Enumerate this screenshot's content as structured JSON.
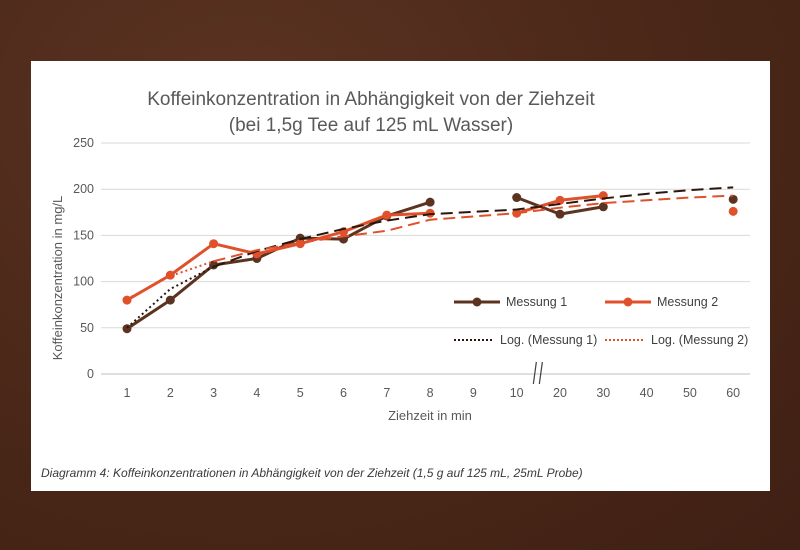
{
  "chart_data": {
    "type": "line",
    "title": "Koffeinkonzentration in Abhängigkeit von der Ziehzeit",
    "subtitle": "(bei 1,5g Tee auf 125 mL Wasser)",
    "xlabel": "Ziehzeit in min",
    "ylabel": "Koffeinkonzentration in mg/L",
    "ylim": [
      0,
      250
    ],
    "yticks": [
      "0",
      "50",
      "100",
      "150",
      "200",
      "250"
    ],
    "categories": [
      "1",
      "2",
      "3",
      "4",
      "5",
      "6",
      "7",
      "8",
      "9",
      "10",
      "20",
      "30",
      "40",
      "50",
      "60"
    ],
    "axis_break_marker": "//",
    "grid": true,
    "legend_position": "bottom-right",
    "series": [
      {
        "name": "Messung 1",
        "color": "#5c3320",
        "style": "solid-markers",
        "points": [
          [
            1,
            49
          ],
          [
            2,
            80
          ],
          [
            3,
            118
          ],
          [
            4,
            125
          ],
          [
            5,
            147
          ],
          [
            6,
            146
          ],
          [
            7,
            171
          ],
          [
            8,
            186
          ],
          [
            10,
            191
          ],
          [
            20,
            173
          ],
          [
            30,
            181
          ],
          [
            60,
            189
          ]
        ],
        "segments": [
          [
            1,
            8
          ],
          [
            10,
            30
          ]
        ]
      },
      {
        "name": "Messung 2",
        "color": "#e0512b",
        "style": "solid-markers",
        "points": [
          [
            1,
            80
          ],
          [
            2,
            107
          ],
          [
            3,
            141
          ],
          [
            4,
            130
          ],
          [
            5,
            141
          ],
          [
            6,
            154
          ],
          [
            7,
            172
          ],
          [
            8,
            174
          ],
          [
            10,
            174
          ],
          [
            20,
            188
          ],
          [
            30,
            193
          ],
          [
            60,
            176
          ]
        ],
        "segments": [
          [
            1,
            8
          ],
          [
            10,
            30
          ]
        ]
      },
      {
        "name": "Log. (Messung 1)",
        "color": "#2b160c",
        "style": "trend",
        "points": [
          [
            1,
            50
          ],
          [
            2,
            92
          ],
          [
            3,
            116
          ],
          [
            4,
            133
          ],
          [
            5,
            146
          ],
          [
            6,
            157
          ],
          [
            7,
            166
          ],
          [
            8,
            173
          ],
          [
            10,
            178
          ],
          [
            20,
            184
          ],
          [
            30,
            190
          ],
          [
            40,
            195
          ],
          [
            50,
            199
          ],
          [
            60,
            202
          ]
        ]
      },
      {
        "name": "Log. (Messung 2)",
        "color": "#e0512b",
        "style": "trend",
        "points": [
          [
            1,
            81
          ],
          [
            2,
            106
          ],
          [
            3,
            122
          ],
          [
            4,
            134
          ],
          [
            5,
            142
          ],
          [
            6,
            149
          ],
          [
            7,
            155
          ],
          [
            8,
            167
          ],
          [
            10,
            174
          ],
          [
            20,
            180
          ],
          [
            30,
            185
          ],
          [
            40,
            188
          ],
          [
            50,
            191
          ],
          [
            60,
            193
          ]
        ]
      }
    ]
  },
  "caption": "Diagramm 4: Koffeinkonzentrationen in Abhängigkeit von der Ziehzeit (1,5 g auf 125 mL,  25mL Probe)"
}
